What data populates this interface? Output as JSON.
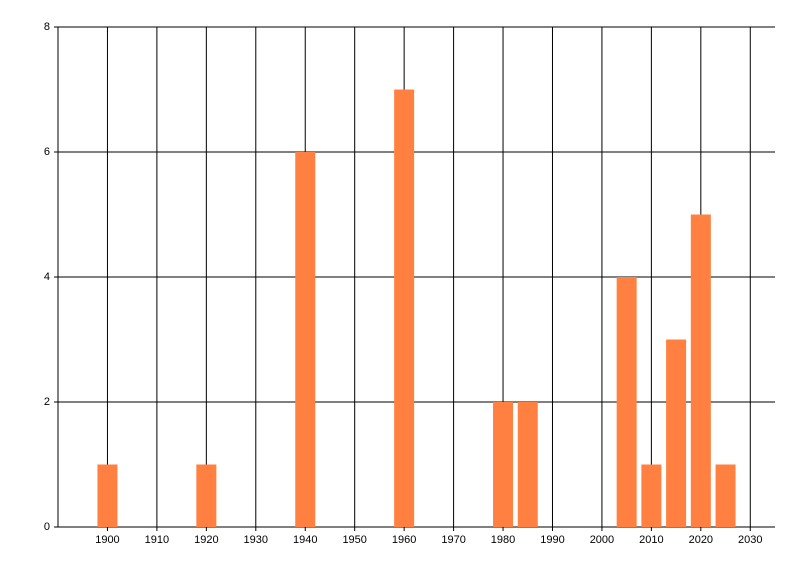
{
  "chart_data": {
    "type": "bar",
    "x": [
      1900,
      1920,
      1940,
      1960,
      1980,
      1985,
      2005,
      2010,
      2015,
      2020,
      2025
    ],
    "values": [
      1,
      1,
      6,
      7,
      2,
      2,
      4,
      1,
      3,
      5,
      1
    ],
    "color": "#ff8040",
    "xlim": [
      1890,
      2035
    ],
    "xticks": [
      1900,
      1910,
      1920,
      1930,
      1940,
      1950,
      1960,
      1970,
      1980,
      1990,
      2000,
      2010,
      2020,
      2030
    ],
    "ylim": [
      0,
      8
    ],
    "yticks": [
      0,
      2,
      4,
      6,
      8
    ],
    "grid": true
  }
}
